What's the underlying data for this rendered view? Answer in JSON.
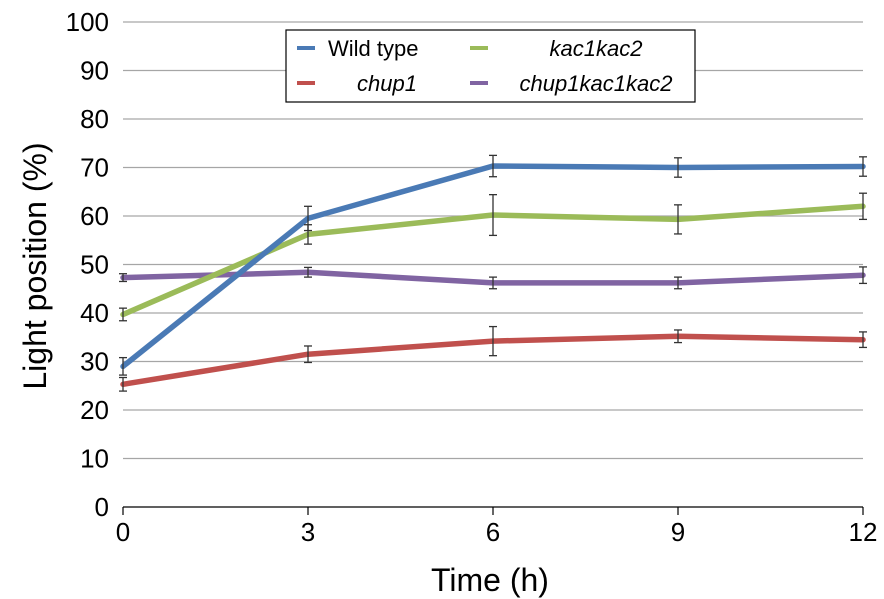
{
  "chart_data": {
    "type": "line",
    "xlabel": "Time (h)",
    "ylabel": "Light position (%)",
    "x": [
      0,
      3,
      6,
      9,
      12
    ],
    "xticks": [
      0,
      3,
      6,
      9,
      12
    ],
    "yticks": [
      0,
      10,
      20,
      30,
      40,
      50,
      60,
      70,
      80,
      90,
      100
    ],
    "xlim": [
      0,
      12
    ],
    "ylim": [
      0,
      100
    ],
    "grid": "horizontal",
    "legend_position": "top-center",
    "series": [
      {
        "name": "Wild type",
        "italic": false,
        "color": "#4a7ab5",
        "values": [
          29,
          59.5,
          70.3,
          70,
          70.2
        ],
        "errors": [
          1.8,
          2.5,
          2.2,
          2.0,
          2.0
        ]
      },
      {
        "name": "chup1",
        "italic": true,
        "color": "#c0504d",
        "values": [
          25.3,
          31.5,
          34.2,
          35.2,
          34.5
        ],
        "errors": [
          1.4,
          1.7,
          3.0,
          1.3,
          1.6
        ]
      },
      {
        "name": "kac1kac2",
        "italic": true,
        "color": "#9bbb59",
        "values": [
          39.7,
          56.2,
          60.2,
          59.3,
          62
        ],
        "errors": [
          1.3,
          2.0,
          4.2,
          3.0,
          2.7
        ]
      },
      {
        "name": "chup1kac1kac2",
        "italic": true,
        "color": "#8064a2",
        "values": [
          47.3,
          48.4,
          46.2,
          46.2,
          47.8
        ],
        "errors": [
          0.8,
          1.0,
          1.2,
          1.2,
          1.7
        ]
      }
    ]
  }
}
